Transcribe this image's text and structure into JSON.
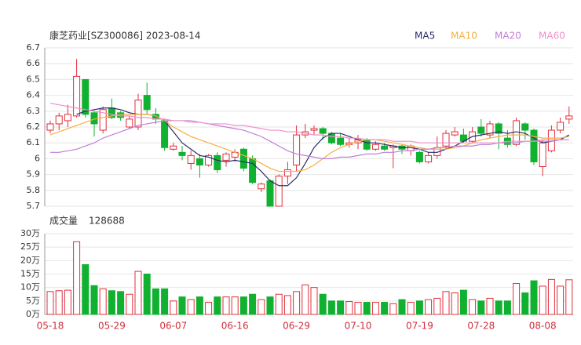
{
  "chart_data": [
    {
      "type": "candlestick",
      "title": "康芝药业[SZ300086] 2023-08-14",
      "up_color": "#e0303c",
      "down_color": "#10b030",
      "grid": true,
      "ylim": [
        5.7,
        6.7
      ],
      "yticks": [
        5.7,
        5.8,
        5.9,
        6,
        6.1,
        6.2,
        6.3,
        6.4,
        6.5,
        6.6,
        6.7
      ],
      "open": [
        6.18,
        6.22,
        6.24,
        6.27,
        6.5,
        6.29,
        6.18,
        6.32,
        6.29,
        6.2,
        6.2,
        6.4,
        6.28,
        6.24,
        6.06,
        6.04,
        5.97,
        6.0,
        5.96,
        6.02,
        5.99,
        6.01,
        6.06,
        6.0,
        5.81,
        5.86,
        5.7,
        5.89,
        5.96,
        6.15,
        6.18,
        6.19,
        6.16,
        6.13,
        6.09,
        6.1,
        6.12,
        6.06,
        6.08,
        6.07,
        6.08,
        6.05,
        6.04,
        5.98,
        6.02,
        6.08,
        6.15,
        6.15,
        6.11,
        6.2,
        6.15,
        6.22,
        6.13,
        6.09,
        6.22,
        6.18,
        5.95,
        6.05,
        6.18,
        6.25
      ],
      "high": [
        6.24,
        6.29,
        6.34,
        6.63,
        6.5,
        6.3,
        6.33,
        6.38,
        6.3,
        6.27,
        6.41,
        6.48,
        6.32,
        6.25,
        6.1,
        6.08,
        6.05,
        6.03,
        6.03,
        6.04,
        6.04,
        6.06,
        6.07,
        6.02,
        5.85,
        5.87,
        5.9,
        5.98,
        6.21,
        6.22,
        6.21,
        6.2,
        6.17,
        6.16,
        6.13,
        6.15,
        6.13,
        6.11,
        6.1,
        6.09,
        6.09,
        6.09,
        6.05,
        6.04,
        6.14,
        6.18,
        6.2,
        6.19,
        6.2,
        6.25,
        6.24,
        6.23,
        6.18,
        6.26,
        6.23,
        6.19,
        6.12,
        6.21,
        6.26,
        6.33
      ],
      "low": [
        6.16,
        6.18,
        6.2,
        6.26,
        6.26,
        6.14,
        6.16,
        6.25,
        6.24,
        6.19,
        6.18,
        6.28,
        6.22,
        6.05,
        6.05,
        5.99,
        5.93,
        5.88,
        5.95,
        5.91,
        5.95,
        5.98,
        5.92,
        5.84,
        5.79,
        5.7,
        5.7,
        5.84,
        5.92,
        6.13,
        6.15,
        6.12,
        6.09,
        6.08,
        6.07,
        6.06,
        6.05,
        6.05,
        6.05,
        5.94,
        6.03,
        6.02,
        5.97,
        5.97,
        6.0,
        6.06,
        6.14,
        6.1,
        6.1,
        6.14,
        6.13,
        6.06,
        6.07,
        6.08,
        6.12,
        5.96,
        5.89,
        6.04,
        6.16,
        6.22
      ],
      "close": [
        6.22,
        6.27,
        6.28,
        6.52,
        6.28,
        6.22,
        6.31,
        6.26,
        6.26,
        6.25,
        6.37,
        6.31,
        6.25,
        6.07,
        6.08,
        6.02,
        6.02,
        5.96,
        6.02,
        5.93,
        6.03,
        6.04,
        5.94,
        5.85,
        5.84,
        5.7,
        5.89,
        5.93,
        6.15,
        6.17,
        6.19,
        6.16,
        6.1,
        6.09,
        6.1,
        6.12,
        6.06,
        6.09,
        6.06,
        6.08,
        6.06,
        6.08,
        5.98,
        6.02,
        6.07,
        6.16,
        6.17,
        6.11,
        6.17,
        6.16,
        6.22,
        6.16,
        6.09,
        6.24,
        6.18,
        5.98,
        6.1,
        6.18,
        6.23,
        6.27
      ],
      "series": [
        {
          "name": "MA5",
          "color": "#2b2b6b",
          "values": [
            null,
            null,
            null,
            6.28,
            6.3,
            6.31,
            6.32,
            6.32,
            6.31,
            6.29,
            6.28,
            6.28,
            6.27,
            6.24,
            6.17,
            6.1,
            6.06,
            6.02,
            6.01,
            5.99,
            5.98,
            5.99,
            5.98,
            5.97,
            5.92,
            5.86,
            5.83,
            5.83,
            5.88,
            5.97,
            6.07,
            6.13,
            6.16,
            6.16,
            6.14,
            6.12,
            6.1,
            6.1,
            6.09,
            6.08,
            6.07,
            6.07,
            6.06,
            6.04,
            6.04,
            6.06,
            6.08,
            6.11,
            6.14,
            6.15,
            6.16,
            6.17,
            6.16,
            6.17,
            6.16,
            6.13,
            6.1,
            6.11,
            6.12,
            6.15
          ]
        },
        {
          "name": "MA10",
          "color": "#f5b043",
          "values": [
            6.15,
            6.17,
            6.19,
            6.21,
            6.23,
            6.25,
            6.26,
            6.27,
            6.28,
            6.28,
            6.28,
            6.28,
            6.27,
            6.24,
            6.2,
            6.17,
            6.14,
            6.12,
            6.1,
            6.08,
            6.06,
            6.04,
            6.02,
            6.0,
            5.97,
            5.94,
            5.92,
            5.92,
            5.92,
            5.93,
            5.96,
            6.0,
            6.04,
            6.07,
            6.09,
            6.11,
            6.12,
            6.12,
            6.11,
            6.1,
            6.09,
            6.08,
            6.07,
            6.06,
            6.06,
            6.06,
            6.07,
            6.08,
            6.1,
            6.12,
            6.13,
            6.14,
            6.15,
            6.15,
            6.15,
            6.14,
            6.13,
            6.13,
            6.13,
            6.14
          ]
        },
        {
          "name": "MA20",
          "color": "#c07ed8",
          "values": [
            6.04,
            6.04,
            6.05,
            6.06,
            6.08,
            6.1,
            6.13,
            6.15,
            6.17,
            6.19,
            6.21,
            6.22,
            6.23,
            6.24,
            6.24,
            6.24,
            6.24,
            6.23,
            6.22,
            6.21,
            6.2,
            6.19,
            6.18,
            6.16,
            6.14,
            6.11,
            6.08,
            6.05,
            6.03,
            6.02,
            6.01,
            6.0,
            6.0,
            6.01,
            6.01,
            6.02,
            6.03,
            6.03,
            6.04,
            6.04,
            6.05,
            6.05,
            6.06,
            6.06,
            6.07,
            6.07,
            6.08,
            6.08,
            6.08,
            6.09,
            6.09,
            6.1,
            6.1,
            6.1,
            6.11,
            6.11,
            6.11,
            6.11,
            6.12,
            6.12
          ]
        },
        {
          "name": "MA60",
          "color": "#f28fca",
          "values": [
            6.35,
            6.34,
            6.33,
            6.32,
            6.31,
            6.3,
            6.29,
            6.28,
            6.27,
            6.27,
            6.26,
            6.26,
            6.25,
            6.25,
            6.24,
            6.24,
            6.23,
            6.23,
            6.22,
            6.22,
            6.22,
            6.21,
            6.21,
            6.2,
            6.19,
            6.18,
            6.18,
            6.17,
            6.17,
            6.16,
            6.15,
            6.15,
            6.14,
            6.14,
            6.13,
            6.13,
            6.12,
            6.12,
            6.12,
            6.11,
            6.11,
            6.11,
            6.1,
            6.1,
            6.1,
            6.1,
            6.1,
            6.1,
            6.1,
            6.1,
            6.1,
            6.1,
            6.11,
            6.11,
            6.11,
            6.11,
            6.12,
            6.12,
            6.12,
            6.12
          ]
        }
      ]
    },
    {
      "type": "bar",
      "title": "成交量",
      "latest": 128688,
      "grid": true,
      "ylim": [
        0,
        30
      ],
      "yticks": [
        {
          "value": 0,
          "label": "0万"
        },
        {
          "value": 5,
          "label": "5万"
        },
        {
          "value": 10,
          "label": "10万"
        },
        {
          "value": 15,
          "label": "15万"
        },
        {
          "value": 20,
          "label": "20万"
        },
        {
          "value": 25,
          "label": "25万"
        },
        {
          "value": 30,
          "label": "30万"
        }
      ],
      "categories": [
        "05-18",
        null,
        null,
        null,
        null,
        null,
        null,
        "05-29",
        null,
        null,
        null,
        null,
        null,
        null,
        "06-07",
        null,
        null,
        null,
        null,
        null,
        null,
        "06-16",
        null,
        null,
        null,
        null,
        null,
        null,
        "06-29",
        null,
        null,
        null,
        null,
        null,
        null,
        "07-10",
        null,
        null,
        null,
        null,
        null,
        null,
        "07-19",
        null,
        null,
        null,
        null,
        null,
        null,
        "07-28",
        null,
        null,
        null,
        null,
        null,
        null,
        "08-08",
        null,
        null,
        null
      ],
      "values": [
        8.5,
        8.8,
        9,
        27,
        18.5,
        10.7,
        9.5,
        8.8,
        8.5,
        7.5,
        16,
        15,
        9.5,
        9.5,
        5,
        6.5,
        5.5,
        6.5,
        4.5,
        6.5,
        6.5,
        6.5,
        6.5,
        7.5,
        5.5,
        6.5,
        7.5,
        7,
        8.5,
        11,
        10,
        7.5,
        5,
        5,
        4.8,
        4.5,
        4.5,
        4.5,
        4.5,
        4,
        5.5,
        4.5,
        5,
        5.5,
        6,
        8.5,
        8,
        9,
        5.5,
        5,
        6,
        5,
        5,
        11.5,
        8,
        12.5,
        10.5,
        13,
        10.5,
        12.87
      ]
    }
  ]
}
